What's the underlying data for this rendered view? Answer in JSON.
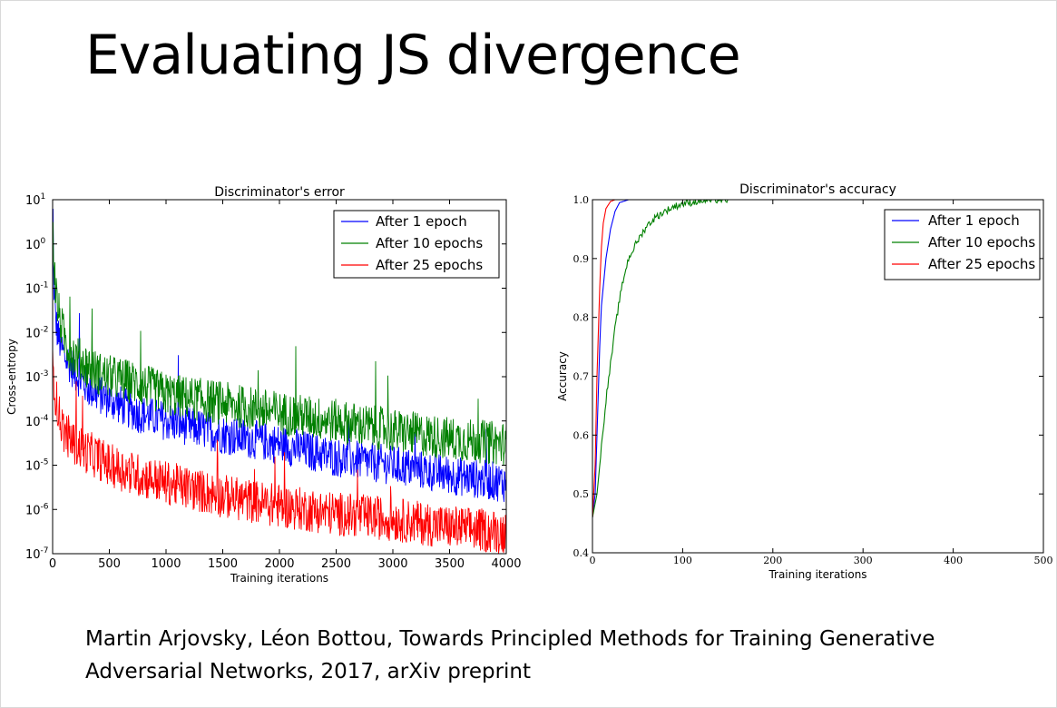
{
  "slide": {
    "title": "Evaluating JS divergence",
    "citation_line1": "Martin Arjovsky, Léon Bottou, Towards Principled Methods for Training Generative",
    "citation_line2": "Adversarial Networks, 2017, arXiv preprint"
  },
  "chart_data": [
    {
      "type": "line",
      "title": "Discriminator's error",
      "xlabel": "Training iterations",
      "ylabel": "Cross-entropy",
      "xlim": [
        0,
        4000
      ],
      "ylim": [
        1e-07,
        10
      ],
      "yscale": "log",
      "x_ticks": [
        "0",
        "500",
        "1000",
        "1500",
        "2000",
        "2500",
        "3000",
        "3500",
        "4000"
      ],
      "y_ticks": [
        {
          "base": "10",
          "exp": "1"
        },
        {
          "base": "10",
          "exp": "0"
        },
        {
          "base": "10",
          "exp": "-1"
        },
        {
          "base": "10",
          "exp": "-2"
        },
        {
          "base": "10",
          "exp": "-3"
        },
        {
          "base": "10",
          "exp": "-4"
        },
        {
          "base": "10",
          "exp": "-5"
        },
        {
          "base": "10",
          "exp": "-6"
        },
        {
          "base": "10",
          "exp": "-7"
        }
      ],
      "legend_position": "top-right",
      "grid": false,
      "series": [
        {
          "name": "After 1 epoch",
          "color": "#0000ff",
          "x": [
            0,
            25,
            50,
            100,
            150,
            200,
            300,
            400,
            500,
            750,
            1000,
            1500,
            2000,
            2500,
            3000,
            3500,
            4000
          ],
          "y": [
            0.5,
            0.02,
            0.008,
            0.003,
            0.002,
            0.0012,
            0.0006,
            0.0004,
            0.0003,
            0.00015,
            0.0001,
            5e-05,
            3e-05,
            1.5e-05,
            1e-05,
            6e-06,
            4e-06
          ]
        },
        {
          "name": "After 10 epochs",
          "color": "#008000",
          "x": [
            0,
            25,
            50,
            100,
            150,
            200,
            300,
            400,
            500,
            750,
            1000,
            1500,
            2000,
            2500,
            3000,
            3500,
            4000
          ],
          "y": [
            2,
            0.1,
            0.03,
            0.008,
            0.004,
            0.003,
            0.0018,
            0.0012,
            0.001,
            0.0007,
            0.0004,
            0.00025,
            0.00015,
            0.0001,
            6e-05,
            4e-05,
            3e-05
          ]
        },
        {
          "name": "After 25 epochs",
          "color": "#ff0000",
          "x": [
            0,
            25,
            50,
            100,
            150,
            200,
            300,
            400,
            500,
            750,
            1000,
            1500,
            2000,
            2500,
            3000,
            3500,
            4000
          ],
          "y": [
            0.002,
            0.0004,
            0.00015,
            6e-05,
            4e-05,
            3e-05,
            2e-05,
            1.5e-05,
            1e-05,
            6e-06,
            4e-06,
            2e-06,
            1.2e-06,
            8e-07,
            6e-07,
            4e-07,
            3e-07
          ]
        }
      ]
    },
    {
      "type": "line",
      "title": "Discriminator's accuracy",
      "xlabel": "Training iterations",
      "ylabel": "Accuracy",
      "xlim": [
        0,
        500
      ],
      "ylim": [
        0.4,
        1.0
      ],
      "x_ticks": [
        "0",
        "100",
        "200",
        "300",
        "400",
        "500"
      ],
      "y_ticks": [
        "1.0",
        "0.9",
        "0.8",
        "0.7",
        "0.6",
        "0.5",
        "0.4"
      ],
      "legend_position": "top-right",
      "grid": false,
      "series": [
        {
          "name": "After 1 epoch",
          "color": "#0000ff",
          "x": [
            0,
            3,
            5,
            8,
            10,
            15,
            20,
            25,
            30,
            40,
            500
          ],
          "y": [
            0.46,
            0.5,
            0.6,
            0.75,
            0.82,
            0.9,
            0.95,
            0.98,
            0.995,
            1.0,
            1.0
          ]
        },
        {
          "name": "After 10 epochs",
          "color": "#008000",
          "x": [
            0,
            5,
            10,
            15,
            20,
            25,
            30,
            35,
            40,
            50,
            60,
            70,
            80,
            90,
            100,
            120,
            140,
            500
          ],
          "y": [
            0.46,
            0.5,
            0.58,
            0.66,
            0.72,
            0.78,
            0.83,
            0.87,
            0.9,
            0.93,
            0.955,
            0.97,
            0.98,
            0.988,
            0.993,
            0.998,
            1.0,
            1.0
          ]
        },
        {
          "name": "After 25 epochs",
          "color": "#ff0000",
          "x": [
            0,
            3,
            5,
            8,
            10,
            12,
            15,
            20,
            25,
            500
          ],
          "y": [
            0.46,
            0.55,
            0.7,
            0.85,
            0.92,
            0.96,
            0.985,
            0.997,
            1.0,
            1.0
          ]
        }
      ]
    }
  ]
}
